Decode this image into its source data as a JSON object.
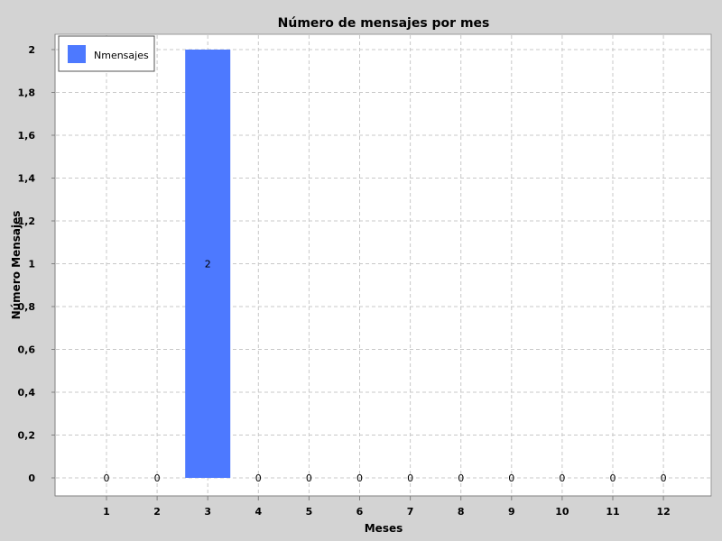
{
  "chart_data": {
    "type": "bar",
    "title": "Número de mensajes por mes",
    "xlabel": "Meses",
    "ylabel": "Número Mensajes",
    "categories": [
      "1",
      "2",
      "3",
      "4",
      "5",
      "6",
      "7",
      "8",
      "9",
      "10",
      "11",
      "12"
    ],
    "series": [
      {
        "name": "Nmensajes",
        "values": [
          0,
          0,
          2,
          0,
          0,
          0,
          0,
          0,
          0,
          0,
          0,
          0
        ],
        "color": "#4d79ff"
      }
    ],
    "data_labels": [
      "0",
      "0",
      "2",
      "0",
      "0",
      "0",
      "0",
      "0",
      "0",
      "0",
      "0",
      "0"
    ],
    "y_ticks": [
      0,
      0.2,
      0.4,
      0.6,
      0.8,
      1,
      1.2,
      1.4,
      1.6,
      1.8,
      2
    ],
    "y_tick_labels": [
      "0",
      "0,2",
      "0,4",
      "0,6",
      "0,8",
      "1",
      "1,2",
      "1,4",
      "1,6",
      "1,8",
      "2"
    ],
    "ylim": [
      0,
      2
    ],
    "grid": true,
    "legend_position": "top-left",
    "colors": {
      "background": "#d3d3d3",
      "plot_background": "#ffffff",
      "grid": "#c8c8c8",
      "axis": "#808080",
      "text": "#000000"
    }
  }
}
